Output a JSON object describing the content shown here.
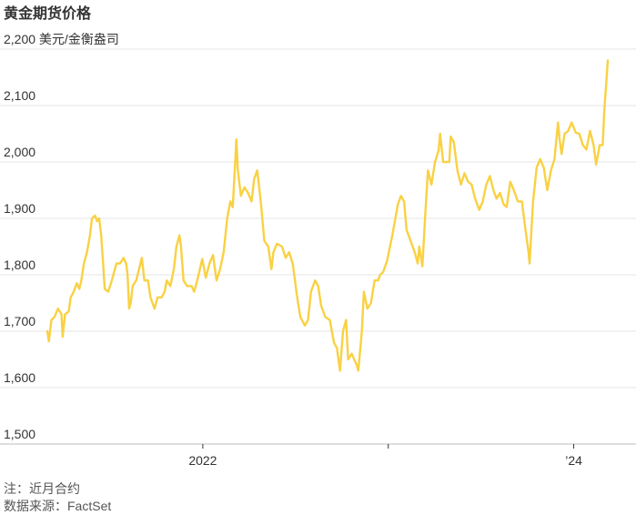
{
  "title": "黄金期货价格",
  "notes": {
    "note": "注：近月合约",
    "source": "数据来源：FactSet"
  },
  "chart_data": {
    "type": "line",
    "title": "黄金期货价格",
    "ylabel": "",
    "xlabel": "",
    "ylim": [
      1500,
      2200
    ],
    "yticks": [
      {
        "value": 2200,
        "label": "2,200 美元/金衡盎司"
      },
      {
        "value": 2100,
        "label": "2,100"
      },
      {
        "value": 2000,
        "label": "2,000"
      },
      {
        "value": 1900,
        "label": "1,900"
      },
      {
        "value": 1800,
        "label": "1,800"
      },
      {
        "value": 1700,
        "label": "1,700"
      },
      {
        "value": 1600,
        "label": "1,600"
      },
      {
        "value": 1500,
        "label": "1,500"
      }
    ],
    "xlim": [
      "2021-03-01",
      "2024-03-08"
    ],
    "xticks": [
      {
        "date": "2022-01-01",
        "label": "2022"
      },
      {
        "date": "2023-01-01",
        "label": ""
      },
      {
        "date": "2024-01-01",
        "label": "’24"
      }
    ],
    "grid": true,
    "color": "#F9D143",
    "series": [
      {
        "name": "",
        "points": [
          [
            "2021-03-01",
            1700
          ],
          [
            "2021-03-04",
            1682
          ],
          [
            "2021-03-09",
            1720
          ],
          [
            "2021-03-15",
            1725
          ],
          [
            "2021-03-22",
            1740
          ],
          [
            "2021-03-29",
            1730
          ],
          [
            "2021-03-31",
            1690
          ],
          [
            "2021-04-05",
            1730
          ],
          [
            "2021-04-12",
            1735
          ],
          [
            "2021-04-16",
            1760
          ],
          [
            "2021-04-22",
            1770
          ],
          [
            "2021-04-28",
            1785
          ],
          [
            "2021-05-03",
            1775
          ],
          [
            "2021-05-07",
            1790
          ],
          [
            "2021-05-12",
            1820
          ],
          [
            "2021-05-18",
            1840
          ],
          [
            "2021-05-24",
            1870
          ],
          [
            "2021-05-28",
            1900
          ],
          [
            "2021-06-03",
            1905
          ],
          [
            "2021-06-07",
            1895
          ],
          [
            "2021-06-11",
            1900
          ],
          [
            "2021-06-15",
            1870
          ],
          [
            "2021-06-18",
            1830
          ],
          [
            "2021-06-22",
            1775
          ],
          [
            "2021-06-29",
            1770
          ],
          [
            "2021-07-06",
            1790
          ],
          [
            "2021-07-15",
            1820
          ],
          [
            "2021-07-22",
            1820
          ],
          [
            "2021-07-29",
            1830
          ],
          [
            "2021-08-03",
            1820
          ],
          [
            "2021-08-06",
            1800
          ],
          [
            "2021-08-09",
            1740
          ],
          [
            "2021-08-12",
            1750
          ],
          [
            "2021-08-16",
            1780
          ],
          [
            "2021-08-23",
            1790
          ],
          [
            "2021-08-30",
            1815
          ],
          [
            "2021-09-03",
            1830
          ],
          [
            "2021-09-08",
            1790
          ],
          [
            "2021-09-15",
            1790
          ],
          [
            "2021-09-20",
            1760
          ],
          [
            "2021-09-28",
            1740
          ],
          [
            "2021-10-04",
            1760
          ],
          [
            "2021-10-12",
            1760
          ],
          [
            "2021-10-18",
            1770
          ],
          [
            "2021-10-22",
            1790
          ],
          [
            "2021-10-29",
            1780
          ],
          [
            "2021-11-05",
            1810
          ],
          [
            "2021-11-10",
            1850
          ],
          [
            "2021-11-16",
            1870
          ],
          [
            "2021-11-19",
            1850
          ],
          [
            "2021-11-24",
            1790
          ],
          [
            "2021-12-01",
            1780
          ],
          [
            "2021-12-10",
            1780
          ],
          [
            "2021-12-15",
            1770
          ],
          [
            "2021-12-21",
            1790
          ],
          [
            "2021-12-31",
            1828
          ],
          [
            "2022-01-07",
            1795
          ],
          [
            "2022-01-14",
            1820
          ],
          [
            "2022-01-21",
            1835
          ],
          [
            "2022-01-28",
            1790
          ],
          [
            "2022-02-04",
            1810
          ],
          [
            "2022-02-11",
            1840
          ],
          [
            "2022-02-18",
            1900
          ],
          [
            "2022-02-24",
            1930
          ],
          [
            "2022-03-01",
            1920
          ],
          [
            "2022-03-04",
            1970
          ],
          [
            "2022-03-08",
            2040
          ],
          [
            "2022-03-11",
            1985
          ],
          [
            "2022-03-17",
            1940
          ],
          [
            "2022-03-24",
            1955
          ],
          [
            "2022-03-31",
            1945
          ],
          [
            "2022-04-07",
            1930
          ],
          [
            "2022-04-12",
            1970
          ],
          [
            "2022-04-18",
            1985
          ],
          [
            "2022-04-25",
            1930
          ],
          [
            "2022-05-02",
            1860
          ],
          [
            "2022-05-10",
            1850
          ],
          [
            "2022-05-16",
            1810
          ],
          [
            "2022-05-20",
            1840
          ],
          [
            "2022-05-27",
            1855
          ],
          [
            "2022-06-06",
            1850
          ],
          [
            "2022-06-13",
            1830
          ],
          [
            "2022-06-20",
            1840
          ],
          [
            "2022-06-27",
            1820
          ],
          [
            "2022-07-05",
            1765
          ],
          [
            "2022-07-12",
            1725
          ],
          [
            "2022-07-21",
            1710
          ],
          [
            "2022-07-27",
            1720
          ],
          [
            "2022-08-02",
            1770
          ],
          [
            "2022-08-10",
            1790
          ],
          [
            "2022-08-16",
            1780
          ],
          [
            "2022-08-22",
            1745
          ],
          [
            "2022-08-30",
            1725
          ],
          [
            "2022-09-08",
            1720
          ],
          [
            "2022-09-16",
            1680
          ],
          [
            "2022-09-22",
            1670
          ],
          [
            "2022-09-28",
            1630
          ],
          [
            "2022-10-04",
            1700
          ],
          [
            "2022-10-10",
            1720
          ],
          [
            "2022-10-14",
            1650
          ],
          [
            "2022-10-21",
            1660
          ],
          [
            "2022-10-31",
            1640
          ],
          [
            "2022-11-03",
            1630
          ],
          [
            "2022-11-10",
            1700
          ],
          [
            "2022-11-14",
            1770
          ],
          [
            "2022-11-21",
            1740
          ],
          [
            "2022-11-28",
            1750
          ],
          [
            "2022-12-05",
            1790
          ],
          [
            "2022-12-12",
            1790
          ],
          [
            "2022-12-16",
            1800
          ],
          [
            "2022-12-22",
            1805
          ],
          [
            "2022-12-30",
            1826
          ],
          [
            "2023-01-09",
            1870
          ],
          [
            "2023-01-20",
            1925
          ],
          [
            "2023-01-26",
            1940
          ],
          [
            "2023-02-01",
            1930
          ],
          [
            "2023-02-06",
            1880
          ],
          [
            "2023-02-14",
            1860
          ],
          [
            "2023-02-22",
            1840
          ],
          [
            "2023-02-28",
            1820
          ],
          [
            "2023-03-03",
            1850
          ],
          [
            "2023-03-09",
            1815
          ],
          [
            "2023-03-15",
            1910
          ],
          [
            "2023-03-20",
            1985
          ],
          [
            "2023-03-27",
            1960
          ],
          [
            "2023-04-03",
            2000
          ],
          [
            "2023-04-10",
            2020
          ],
          [
            "2023-04-13",
            2050
          ],
          [
            "2023-04-19",
            2000
          ],
          [
            "2023-04-25",
            2000
          ],
          [
            "2023-05-01",
            2000
          ],
          [
            "2023-05-04",
            2045
          ],
          [
            "2023-05-10",
            2035
          ],
          [
            "2023-05-17",
            1985
          ],
          [
            "2023-05-24",
            1960
          ],
          [
            "2023-05-31",
            1980
          ],
          [
            "2023-06-07",
            1965
          ],
          [
            "2023-06-14",
            1960
          ],
          [
            "2023-06-21",
            1935
          ],
          [
            "2023-06-29",
            1915
          ],
          [
            "2023-07-06",
            1930
          ],
          [
            "2023-07-13",
            1960
          ],
          [
            "2023-07-20",
            1975
          ],
          [
            "2023-07-27",
            1950
          ],
          [
            "2023-08-02",
            1935
          ],
          [
            "2023-08-09",
            1945
          ],
          [
            "2023-08-16",
            1925
          ],
          [
            "2023-08-22",
            1920
          ],
          [
            "2023-08-29",
            1965
          ],
          [
            "2023-09-05",
            1950
          ],
          [
            "2023-09-13",
            1930
          ],
          [
            "2023-09-21",
            1930
          ],
          [
            "2023-09-28",
            1880
          ],
          [
            "2023-10-04",
            1840
          ],
          [
            "2023-10-06",
            1820
          ],
          [
            "2023-10-13",
            1930
          ],
          [
            "2023-10-20",
            1990
          ],
          [
            "2023-10-27",
            2005
          ],
          [
            "2023-11-03",
            1990
          ],
          [
            "2023-11-10",
            1950
          ],
          [
            "2023-11-17",
            1985
          ],
          [
            "2023-11-24",
            2005
          ],
          [
            "2023-12-01",
            2070
          ],
          [
            "2023-12-04",
            2042
          ],
          [
            "2023-12-08",
            2014
          ],
          [
            "2023-12-14",
            2050
          ],
          [
            "2023-12-21",
            2055
          ],
          [
            "2023-12-28",
            2070
          ],
          [
            "2024-01-05",
            2052
          ],
          [
            "2024-01-12",
            2050
          ],
          [
            "2024-01-19",
            2030
          ],
          [
            "2024-01-26",
            2022
          ],
          [
            "2024-02-02",
            2055
          ],
          [
            "2024-02-09",
            2030
          ],
          [
            "2024-02-14",
            1995
          ],
          [
            "2024-02-21",
            2030
          ],
          [
            "2024-02-27",
            2030
          ],
          [
            "2024-03-01",
            2090
          ],
          [
            "2024-03-05",
            2140
          ],
          [
            "2024-03-08",
            2180
          ]
        ]
      }
    ]
  }
}
